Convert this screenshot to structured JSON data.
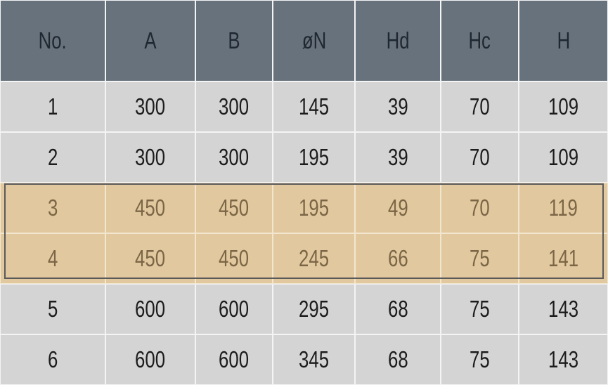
{
  "table": {
    "header": [
      "No.",
      "A",
      "B",
      "øN",
      "Hd",
      "Hc",
      "H"
    ],
    "rows": [
      [
        "1",
        "300",
        "300",
        "145",
        "39",
        "70",
        "109"
      ],
      [
        "2",
        "300",
        "300",
        "195",
        "39",
        "70",
        "109"
      ],
      [
        "3",
        "450",
        "450",
        "195",
        "49",
        "70",
        "119"
      ],
      [
        "4",
        "450",
        "450",
        "245",
        "66",
        "75",
        "141"
      ],
      [
        "5",
        "600",
        "600",
        "295",
        "68",
        "75",
        "143"
      ],
      [
        "6",
        "600",
        "600",
        "345",
        "68",
        "75",
        "143"
      ]
    ],
    "highlighted_rows": [
      2,
      3
    ]
  }
}
